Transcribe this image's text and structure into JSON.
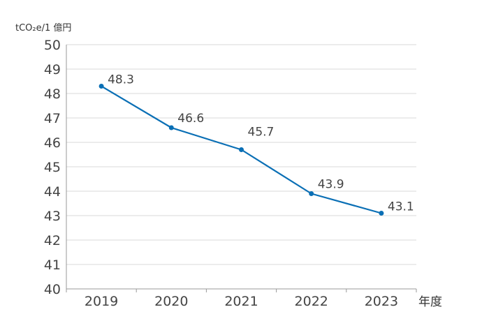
{
  "chart_data": {
    "type": "line",
    "title": "",
    "ylabel": "tCO₂e/1 億円",
    "xlabel": "年度",
    "categories": [
      "2019",
      "2020",
      "2021",
      "2022",
      "2023"
    ],
    "series": [
      {
        "values": [
          48.3,
          46.6,
          45.7,
          43.9,
          43.1
        ],
        "color": "#0a6fb5"
      }
    ],
    "data_labels": [
      "48.3",
      "46.6",
      "45.7",
      "43.9",
      "43.1"
    ],
    "ylim": [
      40,
      50
    ],
    "yticks": [
      "40",
      "41",
      "42",
      "43",
      "44",
      "45",
      "46",
      "47",
      "48",
      "49",
      "50"
    ],
    "grid": true,
    "legend": "none",
    "colors": {
      "line": "#0a6fb5",
      "grid": "#d9d9d9",
      "axis": "#999999"
    }
  }
}
